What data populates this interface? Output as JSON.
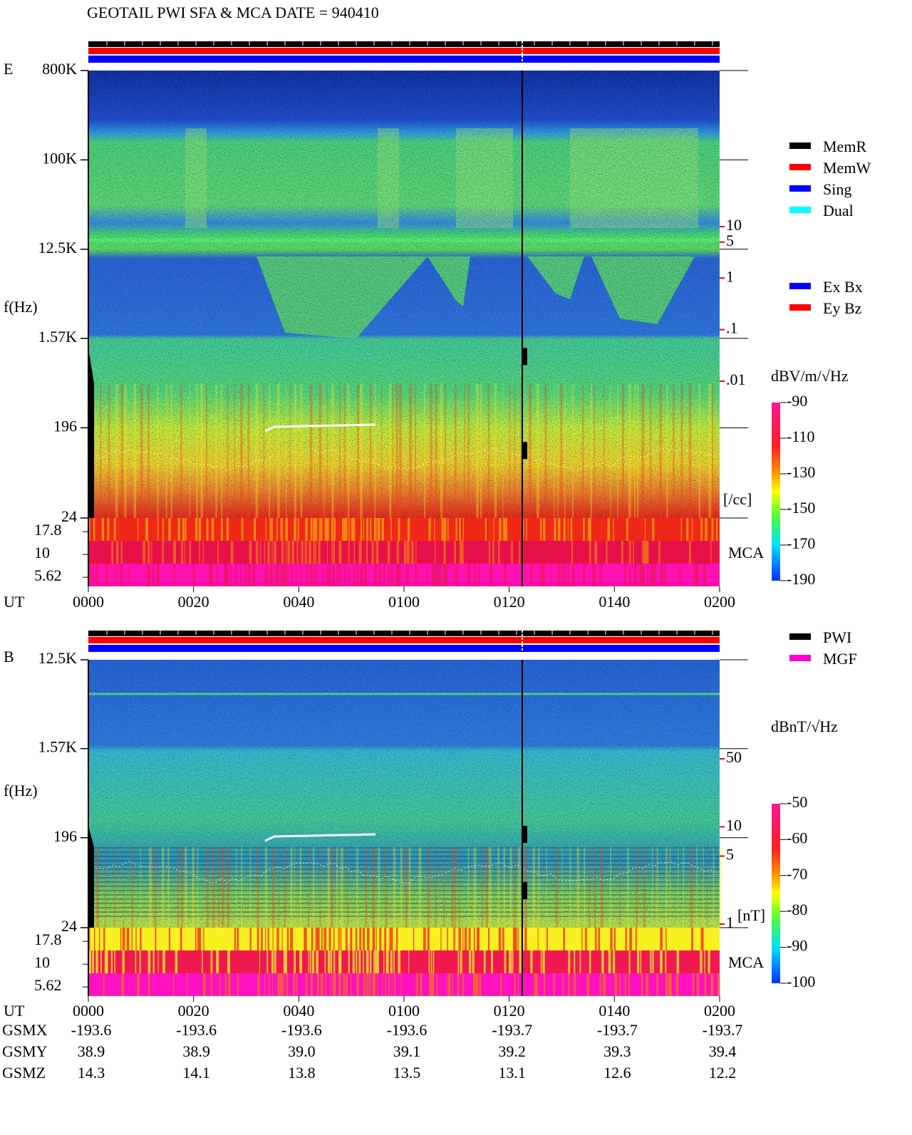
{
  "header": {
    "title": "GEOTAIL   PWI SFA & MCA   DATE = 940410"
  },
  "chart_data": [
    {
      "type": "spectrogram",
      "panel_label": "E",
      "ylabel": "f(Hz)",
      "yscale": "log",
      "ylim": [
        24,
        800000
      ],
      "yticks": [
        {
          "value": 800000,
          "label": "800K"
        },
        {
          "value": 100000,
          "label": "100K"
        },
        {
          "value": 12500,
          "label": "12.5K"
        },
        {
          "value": 1570,
          "label": "1.57K"
        },
        196,
        24
      ],
      "mca_ticks": [
        17.8,
        10,
        5.62
      ],
      "mca_label": "MCA",
      "xlabel": "UT",
      "categories": [
        "0000",
        "0020",
        "0040",
        "0100",
        "0120",
        "0140",
        "0200"
      ],
      "density_label": "[/cc]",
      "density_color": "#ff0000",
      "density_lim": [
        0.01,
        10
      ],
      "density_ticks": [
        10,
        5,
        1,
        {
          "value": 0.1,
          "label": ".1"
        },
        {
          "value": 0.01,
          "label": ".01"
        }
      ],
      "legend": [
        {
          "name": "MemR",
          "color": "#000000"
        },
        {
          "name": "MemW",
          "color": "#ff0000"
        },
        {
          "name": "Sing",
          "color": "#0000ff"
        },
        {
          "name": "Dual",
          "color": "#00ffff"
        }
      ],
      "legend2": [
        {
          "name": "Ex Bx",
          "color": "#0000ff"
        },
        {
          "name": "Ey Bz",
          "color": "#ff0000"
        }
      ],
      "colorbar_label": "dBV/m/√Hz",
      "zlim": [
        -190,
        -90
      ],
      "zticks": [
        -90,
        -110,
        -130,
        -150,
        -170,
        -190
      ]
    },
    {
      "type": "spectrogram",
      "panel_label": "B",
      "ylabel": "f(Hz)",
      "yscale": "log",
      "ylim": [
        24,
        12500
      ],
      "yticks": [
        {
          "value": 12500,
          "label": "12.5K"
        },
        {
          "value": 1570,
          "label": "1.57K"
        },
        196,
        24
      ],
      "mca_ticks": [
        17.8,
        10,
        5.62
      ],
      "mca_label": "MCA",
      "xlabel": "UT",
      "categories": [
        "0000",
        "0020",
        "0040",
        "0100",
        "0120",
        "0140",
        "0200"
      ],
      "density_label": "[nT]",
      "density_color": "#ff0000",
      "density_lim": [
        1,
        50
      ],
      "density_ticks": [
        50,
        10,
        5,
        1
      ],
      "legend": [
        {
          "name": "PWI",
          "color": "#000000"
        },
        {
          "name": "MGF",
          "color": "#ff00cc"
        }
      ],
      "colorbar_label": "dBnT/√Hz",
      "zlim": [
        -100,
        -50
      ],
      "zticks": [
        -50,
        -60,
        -70,
        -80,
        -90,
        -100
      ]
    }
  ],
  "orbit": {
    "rows": [
      {
        "label": "GSMX",
        "values": [
          "-193.6",
          "-193.6",
          "-193.6",
          "-193.6",
          "-193.7",
          "-193.7",
          "-193.7"
        ]
      },
      {
        "label": "GSMY",
        "values": [
          "38.9",
          "38.9",
          "39.0",
          "39.1",
          "39.2",
          "39.3",
          "39.4"
        ]
      },
      {
        "label": "GSMZ",
        "values": [
          "14.3",
          "14.1",
          "13.8",
          "13.5",
          "13.1",
          "12.6",
          "12.2"
        ]
      }
    ]
  }
}
